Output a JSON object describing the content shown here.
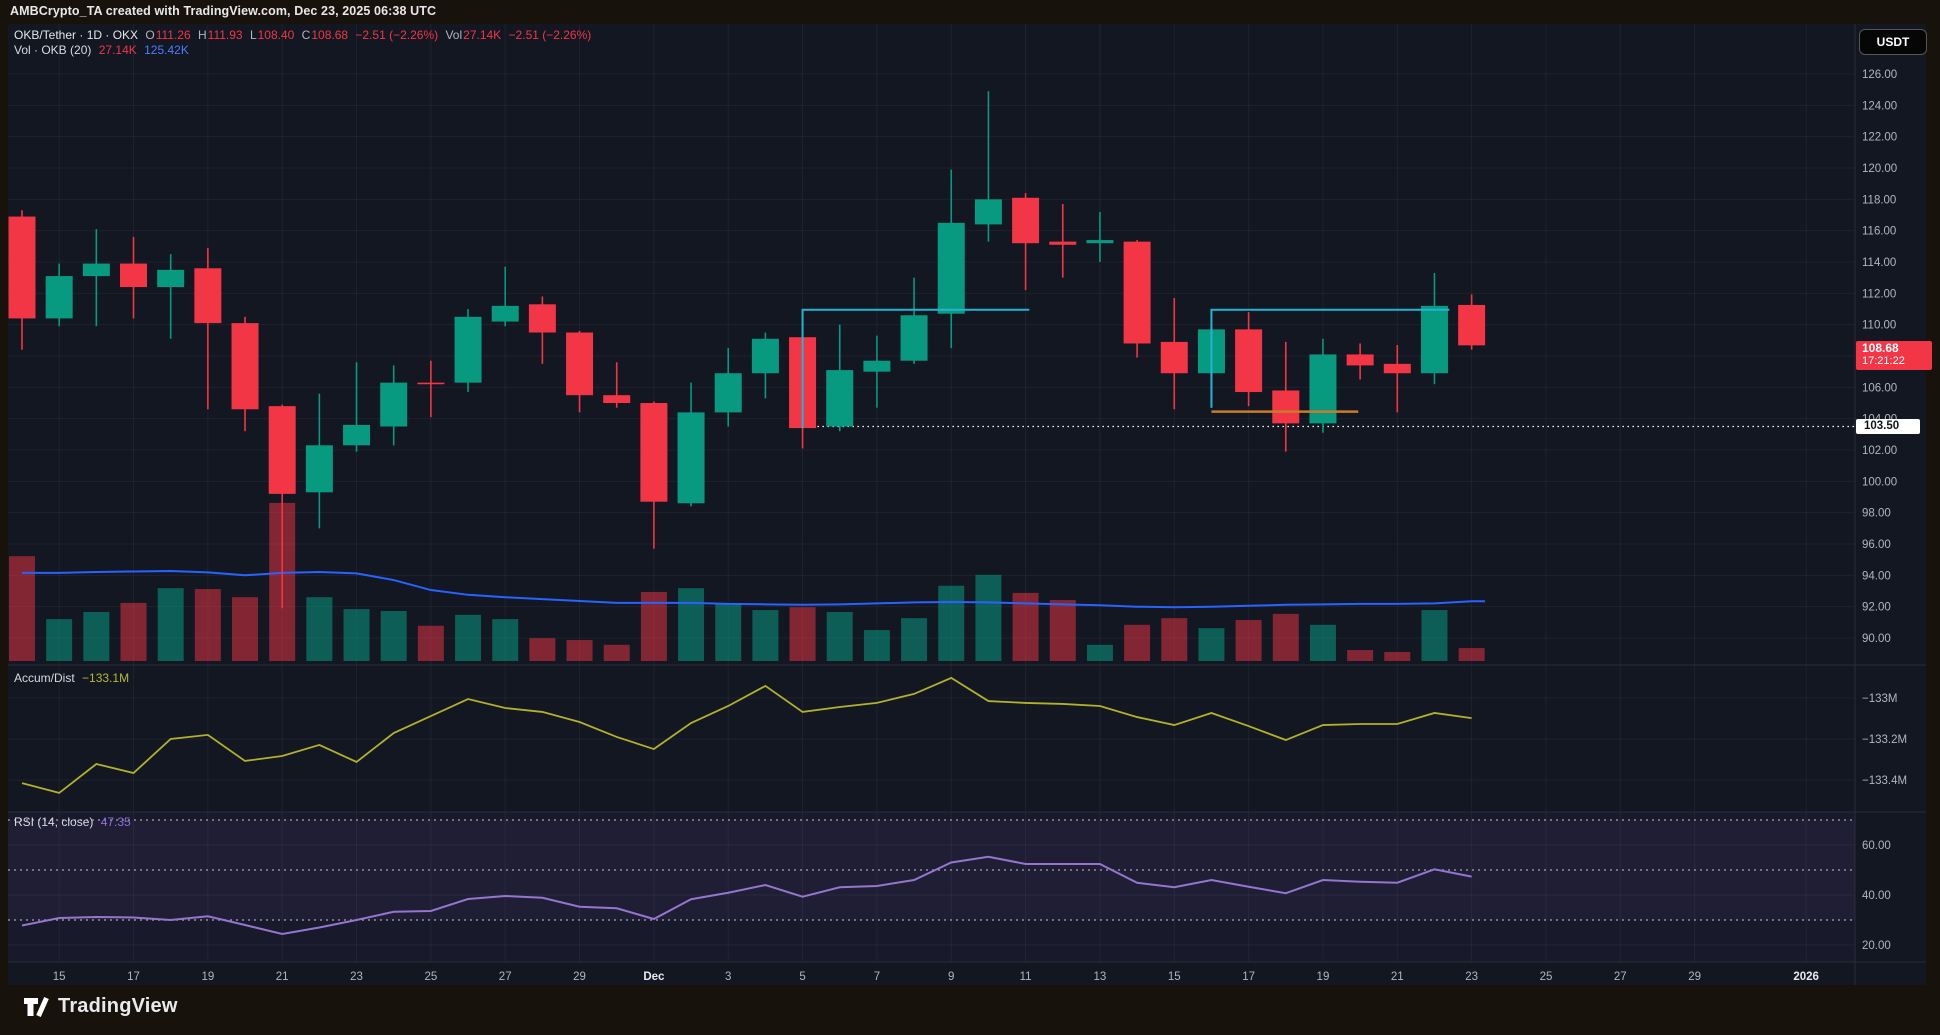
{
  "header": {
    "title": "AMBCrypto_TA created with TradingView.com, Dec 23, 2025 06:38 UTC"
  },
  "toolbar": {
    "currency_button": "USDT"
  },
  "legend": {
    "symbol": "OKB/Tether · 1D · OKX",
    "o_label": "O",
    "o": "111.26",
    "h_label": "H",
    "h": "111.93",
    "l_label": "L",
    "l": "108.40",
    "c_label": "C",
    "c": "108.68",
    "change": "−2.51 (−2.26%)",
    "vol_label": "Vol",
    "vol": "27.14K",
    "change2": "−2.51 (−2.26%)",
    "row2_label": "Vol · OKB (20)",
    "row2_v1": "27.14K",
    "row2_v2": "125.42K"
  },
  "indicator_legends": {
    "accum_dist_label": "Accum/Dist",
    "accum_dist_value": "−133.1M",
    "rsi_label": "RSI (14, close)",
    "rsi_value": "47.35"
  },
  "price_axis": {
    "ticks": [
      "126.00",
      "124.00",
      "122.00",
      "120.00",
      "118.00",
      "116.00",
      "114.00",
      "112.00",
      "110.00",
      "108.00",
      "106.00",
      "104.00",
      "102.00",
      "100.00",
      "98.00",
      "96.00",
      "94.00",
      "92.00",
      "90.00"
    ],
    "price_tag": {
      "price": "108.68",
      "countdown": "17:21:22"
    },
    "line_tag": "103.50"
  },
  "ad_axis": {
    "ticks": [
      {
        "label": "−133M",
        "value": -133.0
      },
      {
        "label": "−133.2M",
        "value": -133.2
      },
      {
        "label": "−133.4M",
        "value": -133.4
      }
    ]
  },
  "rsi_axis": {
    "ticks": [
      {
        "label": "60.00",
        "value": 60
      },
      {
        "label": "40.00",
        "value": 40
      },
      {
        "label": "20.00",
        "value": 20
      }
    ]
  },
  "time_axis": [
    {
      "label": "15",
      "day": 1
    },
    {
      "label": "17",
      "day": 3
    },
    {
      "label": "19",
      "day": 5
    },
    {
      "label": "21",
      "day": 7
    },
    {
      "label": "23",
      "day": 9
    },
    {
      "label": "25",
      "day": 11
    },
    {
      "label": "27",
      "day": 13
    },
    {
      "label": "29",
      "day": 15
    },
    {
      "label": "Dec",
      "day": 17,
      "strong": true
    },
    {
      "label": "3",
      "day": 19
    },
    {
      "label": "5",
      "day": 21
    },
    {
      "label": "7",
      "day": 23
    },
    {
      "label": "9",
      "day": 25
    },
    {
      "label": "11",
      "day": 27
    },
    {
      "label": "13",
      "day": 29
    },
    {
      "label": "15",
      "day": 31
    },
    {
      "label": "17",
      "day": 33
    },
    {
      "label": "19",
      "day": 35
    },
    {
      "label": "21",
      "day": 37
    },
    {
      "label": "23",
      "day": 39
    },
    {
      "label": "25",
      "day": 41
    },
    {
      "label": "27",
      "day": 43
    },
    {
      "label": "29",
      "day": 45
    },
    {
      "label": "2026",
      "day": 48,
      "strong": true
    }
  ],
  "footer": {
    "brand": "TradingView"
  },
  "colors": {
    "bg_outer": "#17120b",
    "bg_chart": "#131722",
    "up": "#089981",
    "down": "#f23645",
    "vol_up": "rgba(8,153,129,0.55)",
    "vol_down": "rgba(242,54,69,0.50)",
    "vol_ma": "#2962ff",
    "accum_dist": "#b2b02c",
    "rsi": "#9575cd",
    "grid": "rgba(134,139,148,0.10)",
    "separator": "#2a2e39",
    "axis_text": "#b2b5be",
    "drawing_cyan": "#22b5d1",
    "drawing_orange": "#c97b2d"
  },
  "chart_data": {
    "type": "candlestick+volume+indicators",
    "symbol": "OKB/Tether",
    "interval": "1D",
    "exchange": "OKX",
    "last_bar": {
      "open": 111.26,
      "high": 111.93,
      "low": 108.4,
      "close": 108.68,
      "change_pct": -2.26,
      "volume_k": 27.14
    },
    "visible_price_range": [
      90,
      126
    ],
    "days": [
      "Nov 14",
      "Nov 15",
      "Nov 16",
      "Nov 17",
      "Nov 18",
      "Nov 19",
      "Nov 20",
      "Nov 21",
      "Nov 22",
      "Nov 23",
      "Nov 24",
      "Nov 25",
      "Nov 26",
      "Nov 27",
      "Nov 28",
      "Nov 29",
      "Nov 30",
      "Dec 1",
      "Dec 2",
      "Dec 3",
      "Dec 4",
      "Dec 5",
      "Dec 6",
      "Dec 7",
      "Dec 8",
      "Dec 9",
      "Dec 10",
      "Dec 11",
      "Dec 12",
      "Dec 13",
      "Dec 14",
      "Dec 15",
      "Dec 16",
      "Dec 17",
      "Dec 18",
      "Dec 19",
      "Dec 20",
      "Dec 21",
      "Dec 22",
      "Dec 23"
    ],
    "candles": [
      [
        116.9,
        117.3,
        108.4,
        110.4
      ],
      [
        110.4,
        113.9,
        109.9,
        113.1
      ],
      [
        113.1,
        116.1,
        109.9,
        113.9
      ],
      [
        113.9,
        115.6,
        110.4,
        112.4
      ],
      [
        112.4,
        114.5,
        109.1,
        113.5
      ],
      [
        113.6,
        114.9,
        104.6,
        110.1
      ],
      [
        110.1,
        110.5,
        103.2,
        104.6
      ],
      [
        104.8,
        104.9,
        91.9,
        99.2
      ],
      [
        99.3,
        105.6,
        97.0,
        102.3
      ],
      [
        102.3,
        107.6,
        101.9,
        103.6
      ],
      [
        103.5,
        107.4,
        102.3,
        106.3
      ],
      [
        106.3,
        107.7,
        104.1,
        106.2
      ],
      [
        106.3,
        111.0,
        105.7,
        110.5
      ],
      [
        110.2,
        113.7,
        109.9,
        111.2
      ],
      [
        111.3,
        111.8,
        107.5,
        109.5
      ],
      [
        109.5,
        109.6,
        104.4,
        105.5
      ],
      [
        105.5,
        107.6,
        104.7,
        105.0
      ],
      [
        105.0,
        105.1,
        95.7,
        98.7
      ],
      [
        98.6,
        106.3,
        98.4,
        104.4
      ],
      [
        104.4,
        108.5,
        103.5,
        106.9
      ],
      [
        106.9,
        109.5,
        105.3,
        109.1
      ],
      [
        109.2,
        109.3,
        102.1,
        103.4
      ],
      [
        103.5,
        110.0,
        103.2,
        107.1
      ],
      [
        107.0,
        109.3,
        104.7,
        107.7
      ],
      [
        107.7,
        113.0,
        107.5,
        110.6
      ],
      [
        110.7,
        119.9,
        108.5,
        116.5
      ],
      [
        116.4,
        124.9,
        115.3,
        118.0
      ],
      [
        118.1,
        118.4,
        112.2,
        115.2
      ],
      [
        115.3,
        117.7,
        113.0,
        115.1
      ],
      [
        115.2,
        117.2,
        114.0,
        115.4
      ],
      [
        115.3,
        115.4,
        107.9,
        108.8
      ],
      [
        108.9,
        111.7,
        104.6,
        106.9
      ],
      [
        106.9,
        109.9,
        104.7,
        109.7
      ],
      [
        109.7,
        110.8,
        104.8,
        105.7
      ],
      [
        105.8,
        108.9,
        101.9,
        103.7
      ],
      [
        103.7,
        109.1,
        103.1,
        108.1
      ],
      [
        108.1,
        108.8,
        106.5,
        107.4
      ],
      [
        107.5,
        108.7,
        104.4,
        106.9
      ],
      [
        106.9,
        113.3,
        106.2,
        111.2
      ],
      [
        111.26,
        111.93,
        108.4,
        108.68
      ]
    ],
    "volume_k": [
      220,
      88,
      103,
      122,
      153,
      151,
      134,
      332,
      134,
      109,
      105,
      74,
      97,
      88,
      48,
      44,
      34,
      145,
      153,
      120,
      107,
      113,
      103,
      65,
      90,
      158,
      181,
      143,
      128,
      34,
      76,
      90,
      69,
      86,
      99,
      76,
      23,
      19,
      107,
      27.14
    ],
    "vol_ma_k": [
      185,
      185,
      187,
      188,
      189,
      186,
      180,
      185,
      187,
      184,
      170,
      149,
      139,
      134,
      130,
      126,
      122,
      122,
      122,
      120,
      119,
      118,
      119,
      121,
      123,
      124,
      123,
      121,
      119,
      117,
      114,
      113,
      114,
      116,
      118,
      119,
      120,
      120,
      121,
      125.42
    ],
    "accum_dist_m": [
      -133.415,
      -133.463,
      -133.322,
      -133.366,
      -133.2,
      -133.18,
      -133.307,
      -133.283,
      -133.229,
      -133.312,
      -133.171,
      -133.088,
      -133.005,
      -133.049,
      -133.068,
      -133.117,
      -133.19,
      -133.249,
      -133.122,
      -133.039,
      -132.941,
      -133.068,
      -133.044,
      -133.024,
      -132.98,
      -132.902,
      -133.015,
      -133.024,
      -133.029,
      -133.039,
      -133.093,
      -133.132,
      -133.073,
      -133.137,
      -133.205,
      -133.132,
      -133.127,
      -133.127,
      -133.073,
      -133.098
    ],
    "rsi": [
      27.8,
      30.8,
      31.2,
      31.0,
      30.0,
      31.5,
      28.0,
      24.4,
      27.0,
      30.0,
      33.3,
      33.6,
      38.4,
      39.6,
      38.9,
      35.3,
      34.7,
      30.4,
      38.3,
      40.9,
      44.0,
      39.3,
      43.1,
      43.6,
      46.0,
      53.0,
      55.3,
      52.4,
      52.4,
      52.4,
      44.9,
      43.1,
      46.0,
      43.3,
      40.7,
      46.0,
      45.3,
      44.9,
      50.3,
      47.35
    ],
    "rsi_levels": [
      70,
      50,
      30
    ],
    "drawings": [
      {
        "type": "polyline",
        "color": "cyan",
        "points": [
          [
            21,
            103.4
          ],
          [
            21,
            110.95
          ],
          [
            27.1,
            110.95
          ]
        ]
      },
      {
        "type": "polyline",
        "color": "cyan",
        "points": [
          [
            32,
            104.7
          ],
          [
            32,
            110.95
          ],
          [
            38.4,
            110.95
          ]
        ]
      },
      {
        "type": "polyline",
        "color": "orange",
        "points": [
          [
            32,
            104.45
          ],
          [
            35.95,
            104.45
          ]
        ]
      },
      {
        "type": "dotted_hline",
        "color": "white",
        "price": 103.5,
        "from_day": 21.4
      }
    ]
  }
}
